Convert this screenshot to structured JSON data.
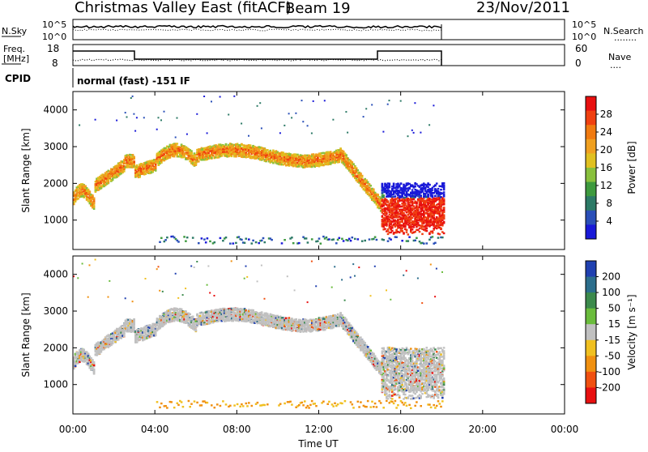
{
  "header": {
    "site": "Christmas Valley East (fitACF)",
    "beam": "Beam 19",
    "date": "23/Nov/2011"
  },
  "top_panel": {
    "left_label": "N.Sky",
    "left_ticks": [
      "10^5",
      "10^0"
    ],
    "right_ticks": [
      "10^5",
      "10^0"
    ],
    "right_label": "N.Search",
    "right_legend_marks": "........"
  },
  "freq_panel": {
    "left_label_1": "Freq.",
    "left_label_2": "[MHz]",
    "left_ticks": [
      "18",
      "8"
    ],
    "right_ticks": [
      "60",
      "0"
    ],
    "right_label": "Nave",
    "right_legend_marks": "...."
  },
  "cpid": {
    "label": "CPID",
    "mode": "normal (fast)  -151  IF"
  },
  "time_axis": {
    "label": "Time UT",
    "ticks": [
      "00:00",
      "04:00",
      "08:00",
      "12:00",
      "16:00",
      "20:00",
      "00:00"
    ]
  },
  "chart_data": [
    {
      "type": "heatmap",
      "title": "",
      "xlabel": "Time UT",
      "ylabel": "Slant Range [km]",
      "x_ticks": [
        "00:00",
        "04:00",
        "08:00",
        "12:00",
        "16:00",
        "20:00",
        "00:00"
      ],
      "y_ticks": [
        1000,
        2000,
        3000,
        4000
      ],
      "xlim_hours": [
        0,
        24
      ],
      "ylim_km": [
        200,
        4500
      ],
      "colorbar": {
        "label": "Power [dB]",
        "ticks": [
          4,
          8,
          12,
          16,
          20,
          24,
          28
        ],
        "colors": [
          "#1919d8",
          "#2a4fb8",
          "#2c7a66",
          "#3e9a3e",
          "#88c03c",
          "#e0c020",
          "#f0a020",
          "#f07a10",
          "#f04010",
          "#e81010"
        ]
      },
      "data_extent_hours": [
        0,
        18.1
      ]
    },
    {
      "type": "heatmap",
      "title": "",
      "xlabel": "Time UT",
      "ylabel": "Slant Range [km]",
      "x_ticks": [
        "00:00",
        "04:00",
        "08:00",
        "12:00",
        "16:00",
        "20:00",
        "00:00"
      ],
      "y_ticks": [
        1000,
        2000,
        3000,
        4000
      ],
      "xlim_hours": [
        0,
        24
      ],
      "ylim_km": [
        200,
        4500
      ],
      "colorbar": {
        "label": "Velocity [m s⁻¹]",
        "ticks": [
          "200",
          "100",
          "50",
          "15",
          "-15",
          "-50",
          "-100",
          "-200"
        ],
        "colors": [
          "#2040b0",
          "#2c6e8c",
          "#3c8a4c",
          "#6abc3c",
          "#c0c0c0",
          "#f0c020",
          "#f09010",
          "#f05010",
          "#e81010"
        ]
      },
      "data_extent_hours": [
        0,
        18.1
      ]
    }
  ],
  "colors": {
    "trace": "#000000",
    "ground_scatter": "#bdbdbd"
  }
}
